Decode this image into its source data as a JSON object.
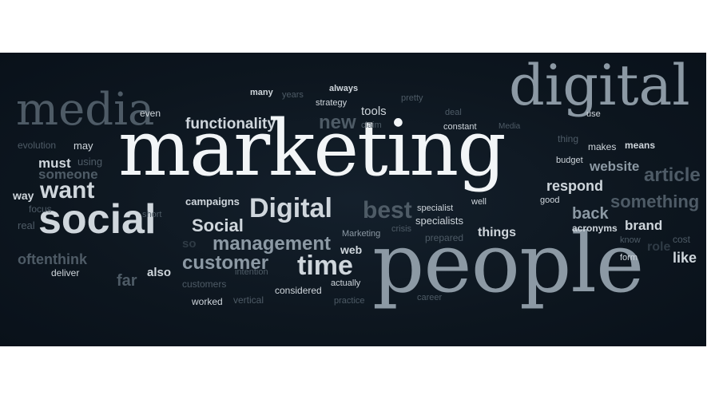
{
  "words": {
    "marketing": "marketing",
    "people": "people",
    "digital_large": "digital",
    "media": "media",
    "social": "social",
    "want": "want",
    "digital_mid": "Digital",
    "functionality": "functionality",
    "new": "new",
    "best": "best",
    "customer": "customer",
    "time": "time",
    "management": "management",
    "social_small": "Social",
    "campaigns": "campaigns",
    "must": "must",
    "someone": "someone",
    "way": "way",
    "may": "may",
    "using": "using",
    "even": "even",
    "many": "many",
    "years": "years",
    "always": "always",
    "strategy": "strategy",
    "tools": "tools",
    "pretty": "pretty",
    "deal": "deal",
    "constant": "constant",
    "claim": "claim",
    "use": "use",
    "thing": "thing",
    "makes": "makes",
    "means": "means",
    "budget": "budget",
    "website": "website",
    "respond": "respond",
    "good": "good",
    "back": "back",
    "acronyms": "acronyms",
    "brand": "brand",
    "cost": "cost",
    "form": "form",
    "like": "like",
    "know": "know",
    "things": "things",
    "specialists": "specialists",
    "specialist": "specialist",
    "well": "well",
    "prepared": "prepared",
    "marketing_small": "Marketing",
    "crisis": "crisis",
    "web": "web",
    "considered": "considered",
    "actually": "actually",
    "career": "career",
    "practice": "practice",
    "worked": "worked",
    "vertical": "vertical",
    "intention": "intention",
    "customers": "customers",
    "far": "far",
    "also": "also",
    "deliver": "deliver",
    "often": "often",
    "think": "think",
    "focus": "focus",
    "real": "real",
    "short": "short",
    "evolution": "evolution",
    "so": "so",
    "something": "something",
    "article": "article",
    "media_small": "Media",
    "role": "role"
  }
}
